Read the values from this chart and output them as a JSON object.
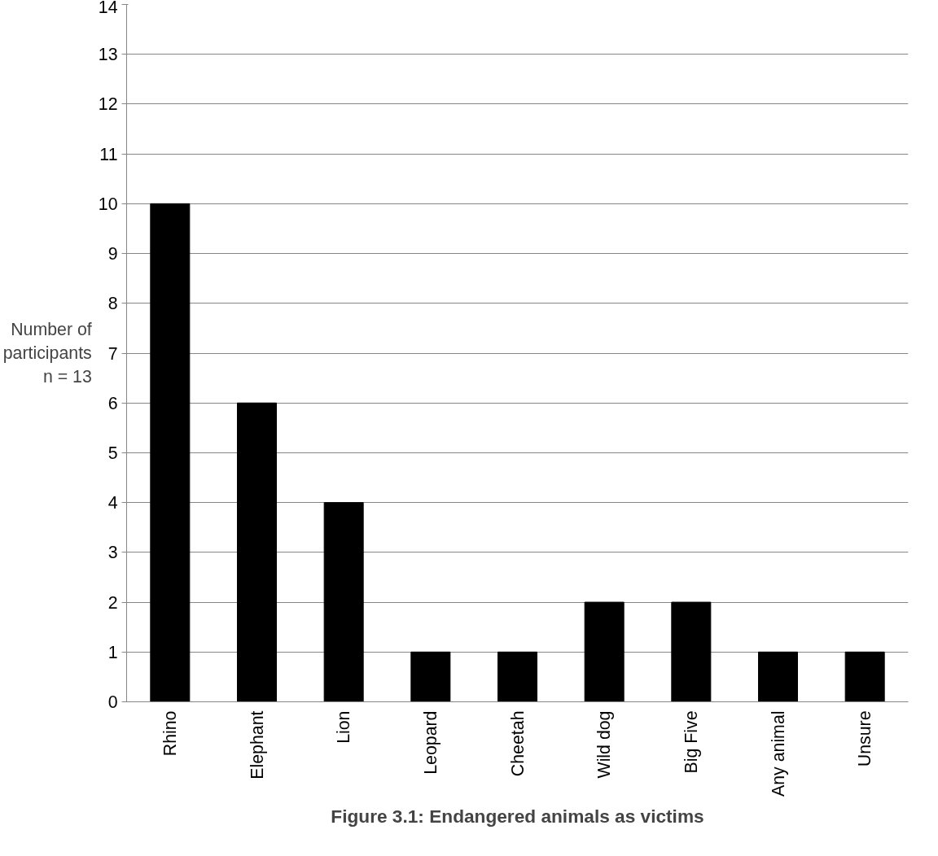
{
  "chart_data": {
    "type": "bar",
    "title": "Figure 3.1: Endangered animals as victims",
    "ylabel": "Number of\nparticipants\nn = 13",
    "categories": [
      "Rhino",
      "Elephant",
      "Lion",
      "Leopard",
      "Cheetah",
      "Wild dog",
      "Big Five",
      "Any animal",
      "Unsure"
    ],
    "values": [
      10,
      6,
      4,
      1,
      1,
      2,
      2,
      1,
      1
    ],
    "color": "#000000",
    "ylim": [
      0,
      14
    ],
    "yticks": [
      0,
      1,
      2,
      3,
      4,
      5,
      6,
      7,
      8,
      9,
      10,
      11,
      12,
      13,
      14
    ],
    "grid": "y"
  }
}
